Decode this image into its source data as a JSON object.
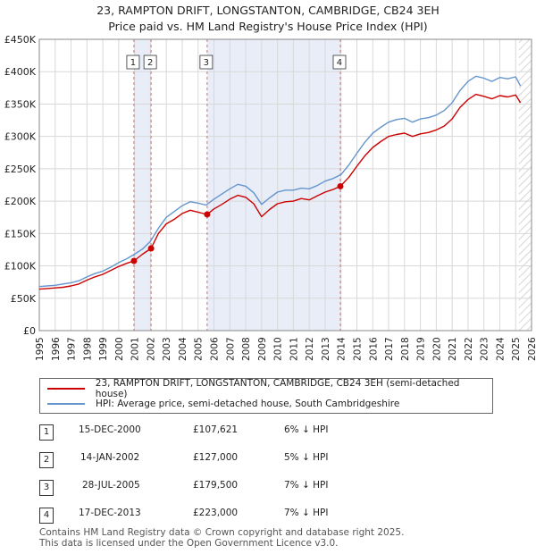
{
  "title": "23, RAMPTON DRIFT, LONGSTANTON, CAMBRIDGE, CB24 3EH",
  "subtitle": "Price paid vs. HM Land Registry's House Price Index (HPI)",
  "colors": {
    "property": "#cc0000",
    "hpi": "#6495cd",
    "shade": "#e8edf8",
    "hatch": "#c8c8c8",
    "vline": "#d07070",
    "grid": "#d8d8d8"
  },
  "chart_data": {
    "type": "line",
    "title": "23, RAMPTON DRIFT, LONGSTANTON, CAMBRIDGE, CB24 3EH",
    "subtitle": "Price paid vs. HM Land Registry's House Price Index (HPI)",
    "xlim": [
      1995,
      2026
    ],
    "ylim": [
      0,
      450000
    ],
    "x_ticks": [
      1995,
      1996,
      1997,
      1998,
      1999,
      2000,
      2001,
      2002,
      2003,
      2004,
      2005,
      2006,
      2007,
      2008,
      2009,
      2010,
      2011,
      2012,
      2013,
      2014,
      2015,
      2016,
      2017,
      2018,
      2019,
      2020,
      2021,
      2022,
      2023,
      2024,
      2025,
      2026
    ],
    "x_tick_labels": [
      "1995",
      "1996",
      "1997",
      "1998",
      "1999",
      "2000",
      "2001",
      "2002",
      "2003",
      "2004",
      "2005",
      "2006",
      "2007",
      "2008",
      "2009",
      "2010",
      "2011",
      "2012",
      "2013",
      "2014",
      "2015",
      "2016",
      "2017",
      "2018",
      "2019",
      "2020",
      "2021",
      "2022",
      "2023",
      "2024",
      "2025",
      "2026"
    ],
    "y_ticks": [
      0,
      50000,
      100000,
      150000,
      200000,
      250000,
      300000,
      350000,
      400000,
      450000
    ],
    "y_tick_labels": [
      "£0",
      "£50K",
      "£100K",
      "£150K",
      "£200K",
      "£250K",
      "£300K",
      "£350K",
      "£400K",
      "£450K"
    ],
    "grid": true,
    "shaded_ranges": [
      [
        2000.96,
        2002.04
      ],
      [
        2005.57,
        2013.96
      ]
    ],
    "hatched_from": 2025.2,
    "series": [
      {
        "name": "23, RAMPTON DRIFT, LONGSTANTON, CAMBRIDGE, CB24 3EH (semi-detached house)",
        "x": [
          1995.0,
          1995.5,
          1996.0,
          1996.5,
          1997.0,
          1997.5,
          1998.0,
          1998.5,
          1999.0,
          1999.5,
          2000.0,
          2000.5,
          2000.96,
          2001.5,
          2002.04,
          2002.5,
          2003.0,
          2003.5,
          2004.0,
          2004.5,
          2005.0,
          2005.57,
          2006.0,
          2006.5,
          2007.0,
          2007.5,
          2008.0,
          2008.5,
          2009.0,
          2009.5,
          2010.0,
          2010.5,
          2011.0,
          2011.5,
          2012.0,
          2012.5,
          2013.0,
          2013.5,
          2013.96,
          2014.5,
          2015.0,
          2015.5,
          2016.0,
          2016.5,
          2017.0,
          2017.5,
          2018.0,
          2018.5,
          2019.0,
          2019.5,
          2020.0,
          2020.5,
          2021.0,
          2021.5,
          2022.0,
          2022.5,
          2023.0,
          2023.5,
          2024.0,
          2024.5,
          2025.0,
          2025.3
        ],
        "values": [
          64000,
          65000,
          66000,
          67000,
          69000,
          72000,
          78000,
          83000,
          87000,
          93000,
          99000,
          104000,
          107621,
          118000,
          127000,
          150000,
          165000,
          172000,
          181000,
          186000,
          183000,
          179500,
          188000,
          195000,
          203000,
          209000,
          206000,
          196000,
          176000,
          187000,
          196000,
          199000,
          200000,
          204000,
          202000,
          208000,
          214000,
          218000,
          223000,
          237000,
          254000,
          270000,
          283000,
          292000,
          300000,
          303000,
          305000,
          300000,
          304000,
          306000,
          310000,
          316000,
          327000,
          345000,
          357000,
          365000,
          362000,
          358000,
          363000,
          361000,
          364000,
          352000
        ]
      },
      {
        "name": "HPI: Average price, semi-detached house, South Cambridgeshire",
        "x": [
          1995.0,
          1995.5,
          1996.0,
          1996.5,
          1997.0,
          1997.5,
          1998.0,
          1998.5,
          1999.0,
          1999.5,
          2000.0,
          2000.5,
          2001.0,
          2001.5,
          2002.0,
          2002.5,
          2003.0,
          2003.5,
          2004.0,
          2004.5,
          2005.0,
          2005.5,
          2006.0,
          2006.5,
          2007.0,
          2007.5,
          2008.0,
          2008.5,
          2009.0,
          2009.5,
          2010.0,
          2010.5,
          2011.0,
          2011.5,
          2012.0,
          2012.5,
          2013.0,
          2013.5,
          2014.0,
          2014.5,
          2015.0,
          2015.5,
          2016.0,
          2016.5,
          2017.0,
          2017.5,
          2018.0,
          2018.5,
          2019.0,
          2019.5,
          2020.0,
          2020.5,
          2021.0,
          2021.5,
          2022.0,
          2022.5,
          2023.0,
          2023.5,
          2024.0,
          2024.5,
          2025.0,
          2025.3
        ],
        "values": [
          68000,
          69000,
          70000,
          72000,
          74000,
          77000,
          83000,
          88000,
          92000,
          98000,
          105000,
          111000,
          118000,
          126000,
          138000,
          158000,
          175000,
          184000,
          193000,
          199000,
          197000,
          194000,
          203000,
          211000,
          219000,
          226000,
          223000,
          213000,
          195000,
          205000,
          214000,
          217000,
          217000,
          220000,
          219000,
          224000,
          231000,
          235000,
          241000,
          256000,
          274000,
          291000,
          305000,
          314000,
          322000,
          326000,
          328000,
          322000,
          327000,
          329000,
          333000,
          340000,
          352000,
          371000,
          385000,
          393000,
          390000,
          385000,
          391000,
          389000,
          392000,
          378000
        ]
      }
    ],
    "markers": [
      {
        "label": "1",
        "x": 2000.96,
        "value": 107621
      },
      {
        "label": "2",
        "x": 2002.04,
        "value": 127000
      },
      {
        "label": "3",
        "x": 2005.57,
        "value": 179500
      },
      {
        "label": "4",
        "x": 2013.96,
        "value": 223000
      }
    ]
  },
  "legend": {
    "property_label": "23, RAMPTON DRIFT, LONGSTANTON, CAMBRIDGE, CB24 3EH (semi-detached house)",
    "hpi_label": "HPI: Average price, semi-detached house, South Cambridgeshire"
  },
  "sales": [
    {
      "num": "1",
      "date": "15-DEC-2000",
      "price": "£107,621",
      "hpi": "6% ↓ HPI"
    },
    {
      "num": "2",
      "date": "14-JAN-2002",
      "price": "£127,000",
      "hpi": "5% ↓ HPI"
    },
    {
      "num": "3",
      "date": "28-JUL-2005",
      "price": "£179,500",
      "hpi": "7% ↓ HPI"
    },
    {
      "num": "4",
      "date": "17-DEC-2013",
      "price": "£223,000",
      "hpi": "7% ↓ HPI"
    }
  ],
  "footer": {
    "line1": "Contains HM Land Registry data © Crown copyright and database right 2025.",
    "line2": "This data is licensed under the Open Government Licence v3.0."
  }
}
